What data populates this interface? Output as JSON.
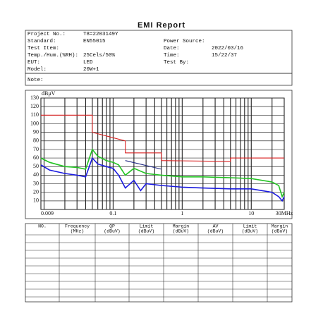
{
  "header": {
    "title": "EMI Report"
  },
  "info": {
    "left": [
      {
        "label": "Project No.:",
        "value": "T8=2203149Y"
      },
      {
        "label": "Standard:",
        "value": "EN55015"
      },
      {
        "label": "Test Item:"
      },
      {
        "label": "Temp./Hum.(%RH):",
        "value": "25Cels/50%"
      },
      {
        "label": "EUT:",
        "value": "LED"
      },
      {
        "label": "Model:",
        "value": "20W+1"
      }
    ],
    "right": [
      {
        "label": "Power Source:"
      },
      {
        "label": "Date:",
        "value": "2022/03/16"
      },
      {
        "label": "Time:",
        "value": "15/22/37"
      },
      {
        "label": "Test By:"
      }
    ],
    "note": "Note:"
  },
  "chart_data": {
    "type": "line",
    "y_label": "dBμV",
    "log_x": true,
    "xlim": [
      0.009,
      30
    ],
    "ylim": [
      0,
      130
    ],
    "xticks": [
      0.009,
      0.1,
      1,
      10,
      {
        "value": 30,
        "label": "30MHz"
      }
    ],
    "yticks": [
      10,
      20,
      30,
      40,
      50,
      60,
      70,
      80,
      90,
      100,
      110,
      120,
      130
    ],
    "xgrid": [
      0.01,
      0.02,
      0.03,
      0.04,
      0.05,
      0.06,
      0.07,
      0.08,
      0.09,
      0.2,
      0.3,
      0.4,
      0.5,
      0.6,
      0.7,
      0.8,
      0.9,
      2,
      3,
      4,
      5,
      6,
      7,
      8,
      9,
      20
    ],
    "grid": true,
    "series": [
      {
        "color": "#d92020",
        "x": [
          0.009,
          0.05,
          0.05,
          0.15,
          0.15,
          0.5,
          0.5,
          5,
          5,
          30
        ],
        "values": [
          110,
          110,
          90,
          80,
          66,
          66,
          57,
          56,
          60,
          60
        ]
      },
      {
        "color": "#1a237e",
        "x": [
          0.15,
          0.5
        ],
        "values": [
          57,
          47
        ]
      },
      {
        "color": "#22c322",
        "x": [
          0.009,
          0.012,
          0.02,
          0.03,
          0.04,
          0.05,
          0.06,
          0.08,
          0.1,
          0.12,
          0.15,
          0.2,
          0.3,
          0.5,
          1,
          2,
          5,
          10,
          20,
          25,
          28,
          30
        ],
        "values": [
          60,
          55,
          50,
          49,
          47,
          70,
          62,
          57,
          55,
          52,
          40,
          48,
          42,
          40,
          38,
          38,
          37,
          36,
          32,
          28,
          15,
          20
        ]
      },
      {
        "color": "#1a1adf",
        "x": [
          0.009,
          0.012,
          0.02,
          0.03,
          0.04,
          0.05,
          0.06,
          0.08,
          0.1,
          0.12,
          0.15,
          0.2,
          0.25,
          0.3,
          0.5,
          1,
          2,
          5,
          10,
          20,
          25,
          28,
          30
        ],
        "values": [
          52,
          46,
          42,
          40,
          38,
          60,
          53,
          50,
          48,
          40,
          25,
          34,
          22,
          30,
          28,
          26,
          25,
          24,
          24,
          20,
          15,
          10,
          15
        ]
      }
    ]
  },
  "table": {
    "headers": [
      [
        "NO."
      ],
      [
        "Frequency",
        "(MHz)"
      ],
      [
        "QP",
        "(dBuV)"
      ],
      [
        "Limit",
        "(dBuV)"
      ],
      [
        "Margin",
        "(dBuV)"
      ],
      [
        "AV",
        "(dBuV)"
      ],
      [
        "Limit",
        "(dBuV)"
      ],
      [
        "Margin",
        "(dBuV)"
      ]
    ]
  }
}
